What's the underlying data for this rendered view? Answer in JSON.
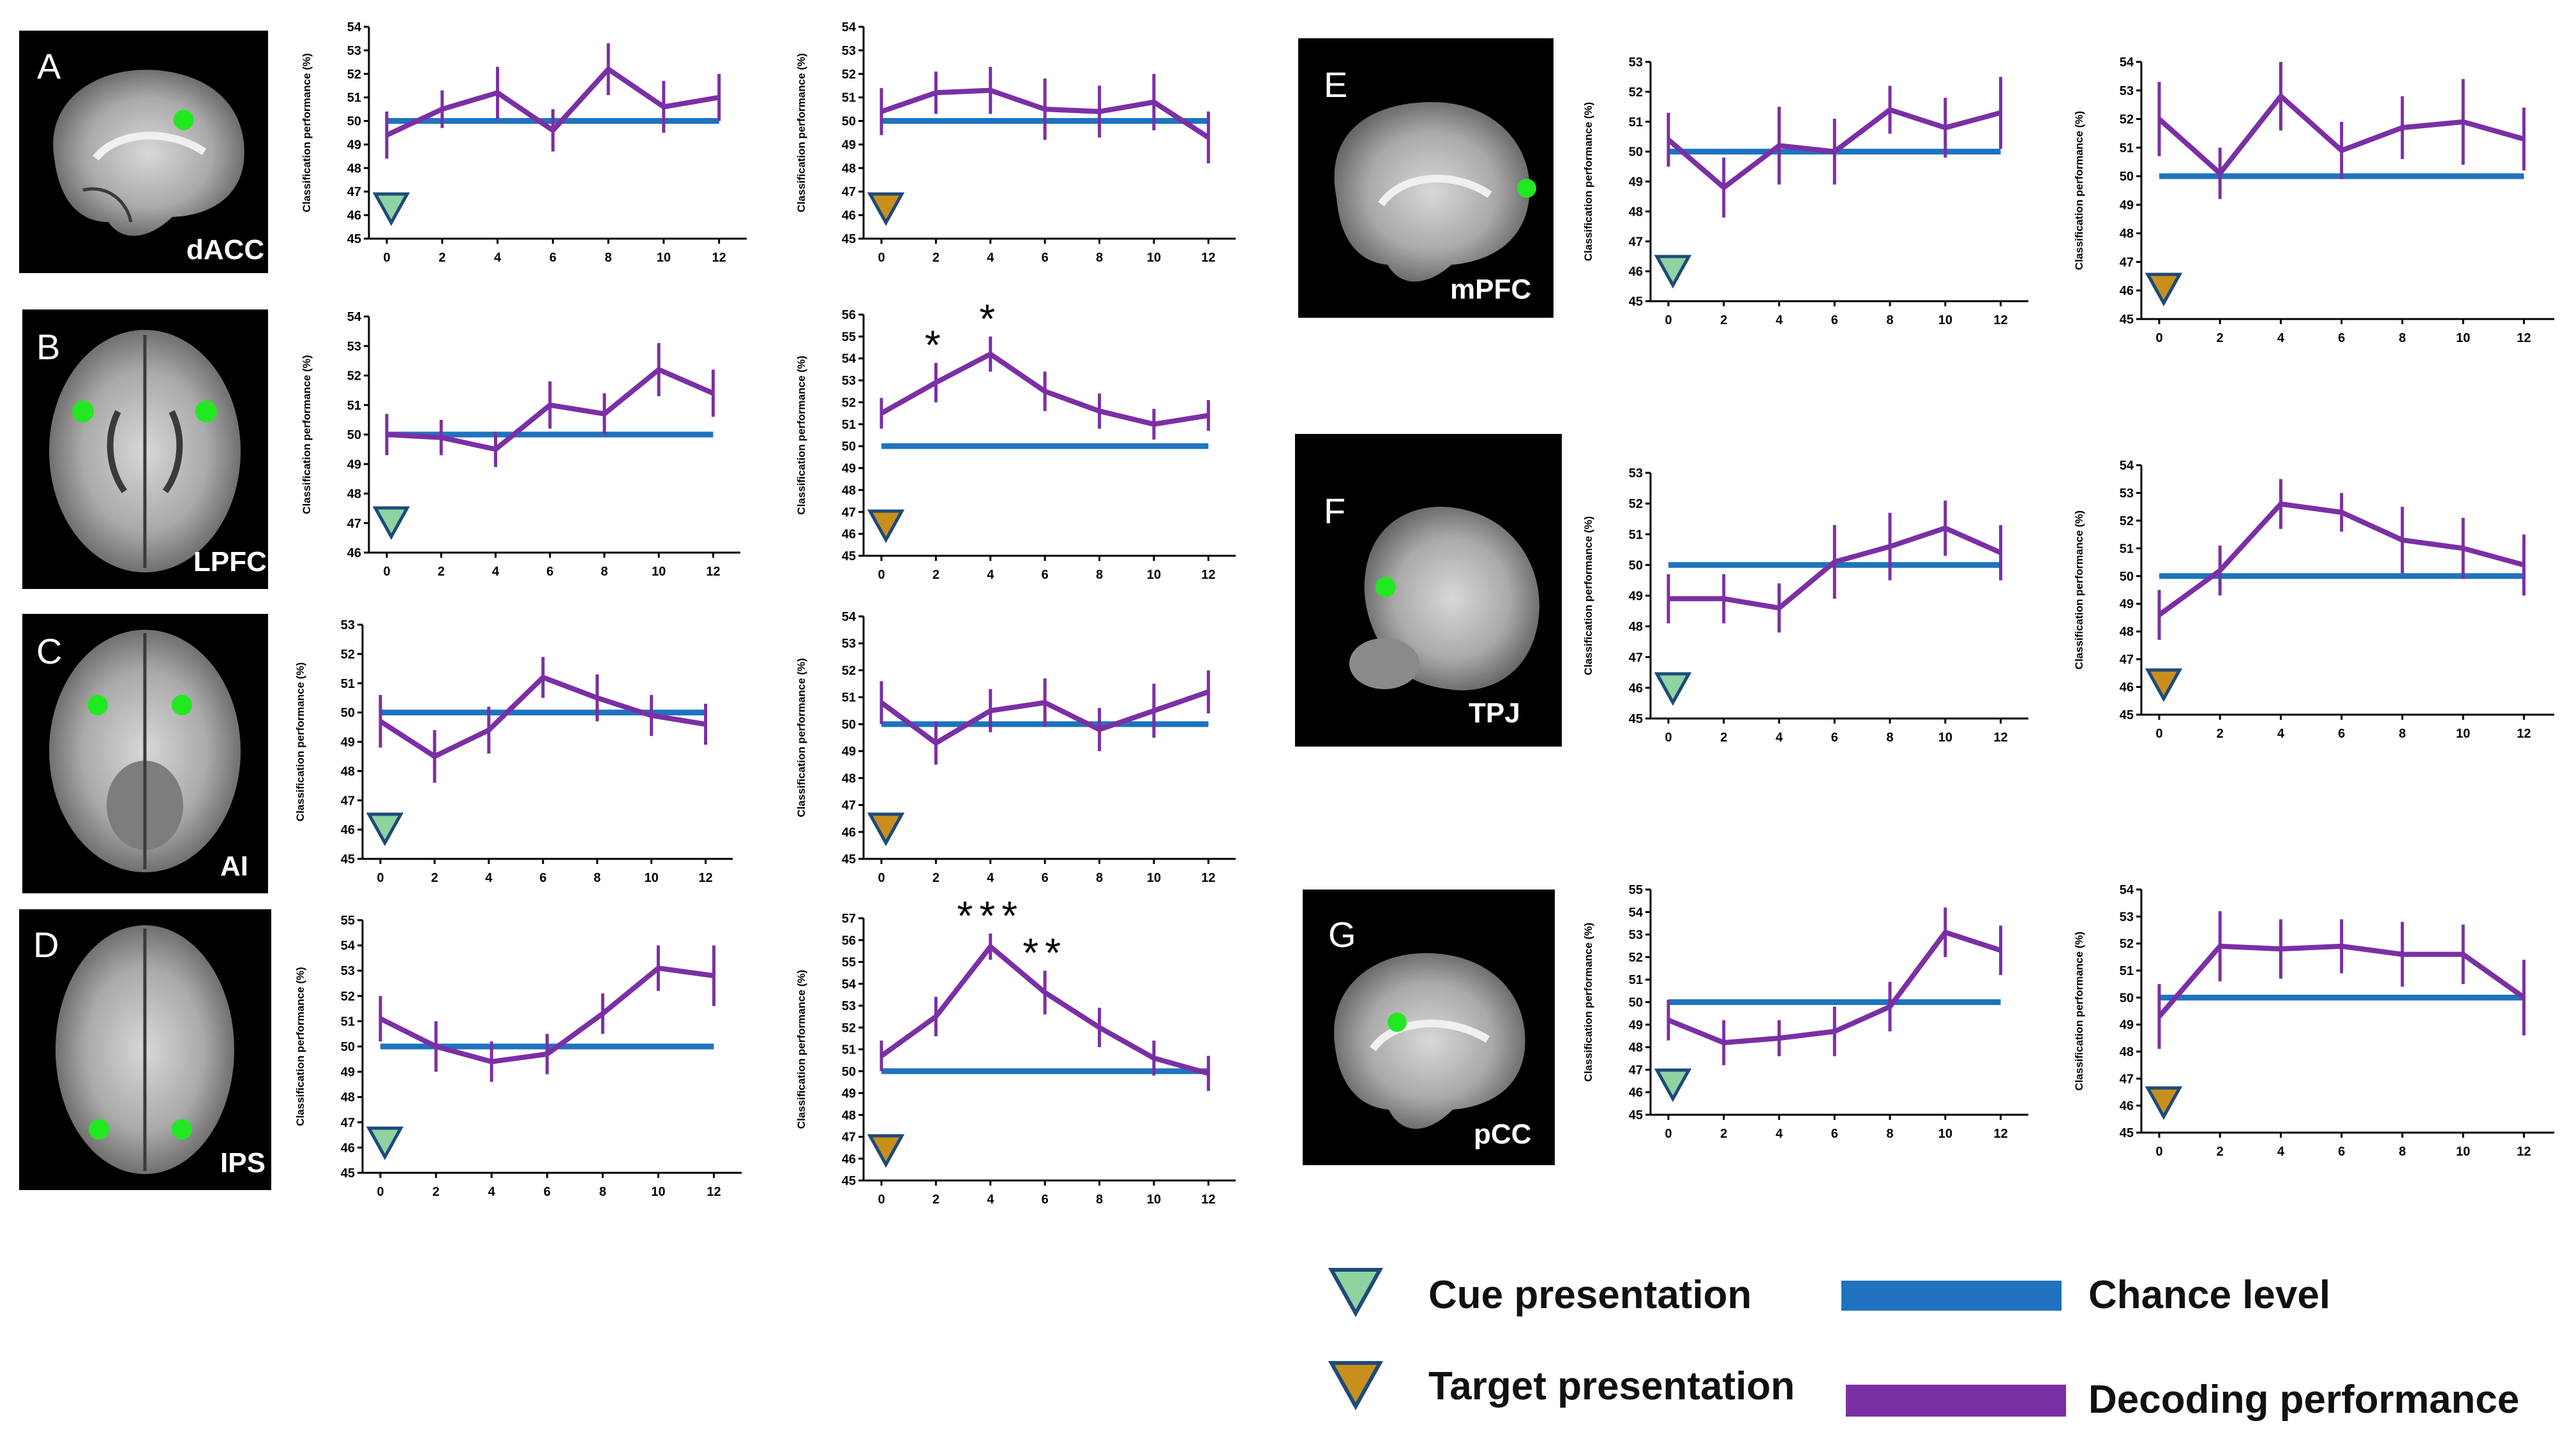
{
  "colors": {
    "chance": "#1f73be",
    "decoding": "#7b2fa5",
    "cue_triangle": "#8fd3a0",
    "target_triangle": "#c98f1c",
    "triangle_outline": "#1d4a7a",
    "roi": "#22e822"
  },
  "panels": [
    {
      "letter": "A",
      "region": "dAC C"
    },
    {
      "letter": "B",
      "region": "LPFC"
    },
    {
      "letter": "C",
      "region": "AI"
    },
    {
      "letter": "D",
      "region": "IPS"
    },
    {
      "letter": "E",
      "region": "mPFC"
    },
    {
      "letter": "F",
      "region": "TPJ"
    },
    {
      "letter": "G",
      "region": "pCC"
    }
  ],
  "chart_data": [
    {
      "type": "line",
      "panel": "A",
      "region": "dACC",
      "event": "cue",
      "ylabel": "Classification performance (%)",
      "x": [
        0,
        2,
        4,
        6,
        8,
        10,
        12
      ],
      "ylim": [
        45,
        54
      ],
      "chance": 50,
      "values": [
        49.4,
        50.5,
        51.2,
        49.6,
        52.2,
        50.6,
        51.0
      ],
      "errors": [
        1.0,
        0.8,
        1.1,
        0.9,
        1.1,
        1.1,
        1.0
      ],
      "significance": []
    },
    {
      "type": "line",
      "panel": "A",
      "region": "dACC",
      "event": "target",
      "ylabel": "Classification performance (%)",
      "x": [
        0,
        2,
        4,
        6,
        8,
        10,
        12
      ],
      "ylim": [
        45,
        54
      ],
      "chance": 50,
      "values": [
        50.4,
        51.2,
        51.3,
        50.5,
        50.4,
        50.8,
        49.3
      ],
      "errors": [
        1.0,
        0.9,
        1.0,
        1.3,
        1.1,
        1.2,
        1.1
      ],
      "significance": []
    },
    {
      "type": "line",
      "panel": "B",
      "region": "LPFC",
      "event": "cue",
      "ylabel": "Classification performance (%)",
      "x": [
        0,
        2,
        4,
        6,
        8,
        10,
        12
      ],
      "ylim": [
        46,
        54
      ],
      "chance": 50,
      "values": [
        50.0,
        49.9,
        49.5,
        51.0,
        50.7,
        52.2,
        51.4
      ],
      "errors": [
        0.7,
        0.6,
        0.6,
        0.8,
        0.7,
        0.9,
        0.8
      ],
      "significance": []
    },
    {
      "type": "line",
      "panel": "B",
      "region": "LPFC",
      "event": "target",
      "ylabel": "Classification performance (%)",
      "x": [
        0,
        2,
        4,
        6,
        8,
        10,
        12
      ],
      "ylim": [
        45,
        56
      ],
      "chance": 50,
      "values": [
        51.5,
        52.9,
        54.2,
        52.5,
        51.6,
        51.0,
        51.4
      ],
      "errors": [
        0.7,
        0.9,
        0.8,
        0.9,
        0.8,
        0.7,
        0.7
      ],
      "significance": [
        {
          "x": 2,
          "label": "*"
        },
        {
          "x": 4,
          "label": "*"
        }
      ]
    },
    {
      "type": "line",
      "panel": "C",
      "region": "AI",
      "event": "cue",
      "ylabel": "Classification performance (%)",
      "x": [
        0,
        2,
        4,
        6,
        8,
        10,
        12
      ],
      "ylim": [
        45,
        53
      ],
      "chance": 50,
      "values": [
        49.7,
        48.5,
        49.4,
        51.2,
        50.5,
        49.9,
        49.6
      ],
      "errors": [
        0.9,
        0.9,
        0.8,
        0.7,
        0.8,
        0.7,
        0.7
      ],
      "significance": []
    },
    {
      "type": "line",
      "panel": "C",
      "region": "AI",
      "event": "target",
      "ylabel": "Classification performance (%)",
      "x": [
        0,
        2,
        4,
        6,
        8,
        10,
        12
      ],
      "ylim": [
        45,
        54
      ],
      "chance": 50,
      "values": [
        50.8,
        49.3,
        50.5,
        50.8,
        49.8,
        50.5,
        51.2
      ],
      "errors": [
        0.8,
        0.8,
        0.8,
        0.9,
        0.8,
        1.0,
        0.8
      ],
      "significance": []
    },
    {
      "type": "line",
      "panel": "D",
      "region": "IPS",
      "event": "cue",
      "ylabel": "Classification performance (%)",
      "x": [
        0,
        2,
        4,
        6,
        8,
        10,
        12
      ],
      "ylim": [
        45,
        55
      ],
      "chance": 50,
      "values": [
        51.1,
        50.0,
        49.4,
        49.7,
        51.3,
        53.1,
        52.8
      ],
      "errors": [
        0.9,
        1.0,
        0.8,
        0.8,
        0.8,
        0.9,
        1.2
      ],
      "significance": []
    },
    {
      "type": "line",
      "panel": "D",
      "region": "IPS",
      "event": "target",
      "ylabel": "Classification performance (%)",
      "x": [
        0,
        2,
        4,
        6,
        8,
        10,
        12
      ],
      "ylim": [
        45,
        57
      ],
      "chance": 50,
      "values": [
        50.7,
        52.5,
        55.7,
        53.6,
        52.0,
        50.6,
        49.9
      ],
      "errors": [
        0.7,
        0.9,
        0.6,
        1.0,
        0.9,
        0.8,
        0.8
      ],
      "significance": [
        {
          "x": 4,
          "label": "***"
        },
        {
          "x": 6,
          "label": "**"
        }
      ]
    },
    {
      "type": "line",
      "panel": "E",
      "region": "mPFC",
      "event": "cue",
      "ylabel": "Classification performance (%)",
      "x": [
        0,
        2,
        4,
        6,
        8,
        10,
        12
      ],
      "ylim": [
        45,
        53
      ],
      "chance": 50,
      "values": [
        50.4,
        48.8,
        50.2,
        50.0,
        51.4,
        50.8,
        51.3
      ],
      "errors": [
        0.9,
        1.0,
        1.3,
        1.1,
        0.8,
        1.0,
        1.2
      ],
      "significance": []
    },
    {
      "type": "line",
      "panel": "E",
      "region": "mPFC",
      "event": "target",
      "ylabel": "Classification performance (%)",
      "x": [
        0,
        2,
        4,
        6,
        8,
        10,
        12
      ],
      "ylim": [
        45,
        54
      ],
      "chance": 50,
      "values": [
        52.0,
        50.1,
        52.8,
        50.9,
        51.7,
        51.9,
        51.3
      ],
      "errors": [
        1.3,
        0.9,
        1.2,
        1.0,
        1.1,
        1.5,
        1.1
      ],
      "significance": []
    },
    {
      "type": "line",
      "panel": "F",
      "region": "TPJ",
      "event": "cue",
      "ylabel": "Classification performance (%)",
      "x": [
        0,
        2,
        4,
        6,
        8,
        10,
        12
      ],
      "ylim": [
        45,
        53
      ],
      "chance": 50,
      "values": [
        48.9,
        48.9,
        48.6,
        50.1,
        50.6,
        51.2,
        50.4
      ],
      "errors": [
        0.8,
        0.8,
        0.8,
        1.2,
        1.1,
        0.9,
        0.9
      ],
      "significance": []
    },
    {
      "type": "line",
      "panel": "F",
      "region": "TPJ",
      "event": "target",
      "ylabel": "Classification performance (%)",
      "x": [
        0,
        2,
        4,
        6,
        8,
        10,
        12
      ],
      "ylim": [
        45,
        54
      ],
      "chance": 50,
      "values": [
        48.6,
        50.2,
        52.6,
        52.3,
        51.3,
        51.0,
        50.4
      ],
      "errors": [
        0.9,
        0.9,
        0.9,
        0.7,
        1.2,
        1.1,
        1.1
      ],
      "significance": []
    },
    {
      "type": "line",
      "panel": "G",
      "region": "pCC",
      "event": "cue",
      "ylabel": "Classification performance (%)",
      "x": [
        0,
        2,
        4,
        6,
        8,
        10,
        12
      ],
      "ylim": [
        45,
        55
      ],
      "chance": 50,
      "values": [
        49.2,
        48.2,
        48.4,
        48.7,
        49.8,
        53.1,
        52.3
      ],
      "errors": [
        0.9,
        1.0,
        0.8,
        1.1,
        1.1,
        1.1,
        1.1
      ],
      "significance": []
    },
    {
      "type": "line",
      "panel": "G",
      "region": "pCC",
      "event": "target",
      "ylabel": "Classification performance (%)",
      "x": [
        0,
        2,
        4,
        6,
        8,
        10,
        12
      ],
      "ylim": [
        45,
        54
      ],
      "chance": 50,
      "values": [
        49.3,
        51.9,
        51.8,
        51.9,
        51.6,
        51.6,
        50.0
      ],
      "errors": [
        1.2,
        1.3,
        1.1,
        1.0,
        1.2,
        1.1,
        1.4
      ],
      "significance": []
    }
  ],
  "legend": {
    "cue": "Cue presentation",
    "target": "Target presentation",
    "chance": "Chance level",
    "decoding": "Decoding performance"
  }
}
